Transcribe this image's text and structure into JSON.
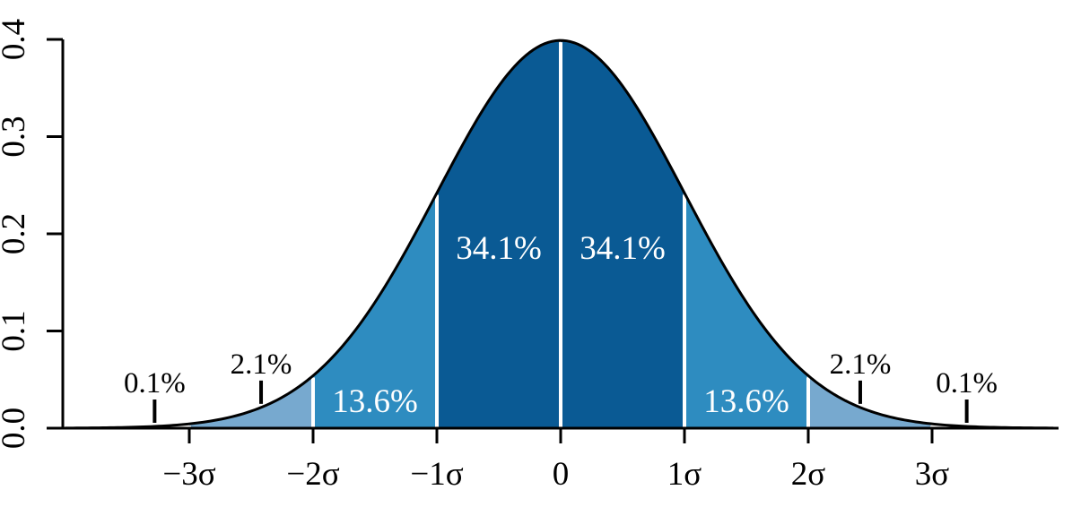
{
  "chart_data": {
    "type": "area",
    "title": "",
    "description": "Standard normal distribution curve with shaded areas between standard deviations",
    "distribution": "standard normal probability density",
    "peak_density": 0.3989,
    "xlim_sigma": [
      -4,
      4
    ],
    "ylim": [
      0,
      0.4
    ],
    "grid": "off",
    "x_ticks": [
      {
        "sigma": -3,
        "label": "−3σ"
      },
      {
        "sigma": -2,
        "label": "−2σ"
      },
      {
        "sigma": -1,
        "label": "−1σ"
      },
      {
        "sigma": 0,
        "label": "0"
      },
      {
        "sigma": 1,
        "label": "1σ"
      },
      {
        "sigma": 2,
        "label": "2σ"
      },
      {
        "sigma": 3,
        "label": "3σ"
      }
    ],
    "y_ticks": [
      {
        "value": 0.0,
        "label": "0.0"
      },
      {
        "value": 0.1,
        "label": "0.1"
      },
      {
        "value": 0.2,
        "label": "0.2"
      },
      {
        "value": 0.3,
        "label": "0.3"
      },
      {
        "value": 0.4,
        "label": "0.4"
      }
    ],
    "regions": [
      {
        "from_sigma": -4,
        "to_sigma": -3,
        "percent_label": "0.1%",
        "fill": "none",
        "label_placement": "above",
        "label_sigma": -3.28,
        "label_color": "#000000"
      },
      {
        "from_sigma": -3,
        "to_sigma": -2,
        "percent_label": "2.1%",
        "fill": "#77A9CF",
        "label_placement": "above",
        "label_sigma": -2.42,
        "label_color": "#000000"
      },
      {
        "from_sigma": -2,
        "to_sigma": -1,
        "percent_label": "13.6%",
        "fill": "#2E8CC0",
        "label_placement": "inside",
        "label_sigma": -1.5,
        "label_color": "#ffffff"
      },
      {
        "from_sigma": -1,
        "to_sigma": 0,
        "percent_label": "34.1%",
        "fill": "#0A5A94",
        "label_placement": "inside",
        "label_sigma": -0.5,
        "label_color": "#ffffff"
      },
      {
        "from_sigma": 0,
        "to_sigma": 1,
        "percent_label": "34.1%",
        "fill": "#0A5A94",
        "label_placement": "inside",
        "label_sigma": 0.5,
        "label_color": "#ffffff"
      },
      {
        "from_sigma": 1,
        "to_sigma": 2,
        "percent_label": "13.6%",
        "fill": "#2E8CC0",
        "label_placement": "inside",
        "label_sigma": 1.5,
        "label_color": "#ffffff"
      },
      {
        "from_sigma": 2,
        "to_sigma": 3,
        "percent_label": "2.1%",
        "fill": "#77A9CF",
        "label_placement": "above",
        "label_sigma": 2.42,
        "label_color": "#000000"
      },
      {
        "from_sigma": 3,
        "to_sigma": 4,
        "percent_label": "0.1%",
        "fill": "none",
        "label_placement": "above",
        "label_sigma": 3.28,
        "label_color": "#000000"
      }
    ],
    "dividers_sigma": [
      -3,
      -2,
      -1,
      0,
      1,
      2,
      3
    ],
    "colors": {
      "curve": "#000000",
      "axis": "#000000",
      "divider": "#ffffff",
      "band_dark": "#0A5A94",
      "band_medium": "#2E8CC0",
      "band_light": "#77A9CF",
      "background": "#ffffff"
    }
  }
}
